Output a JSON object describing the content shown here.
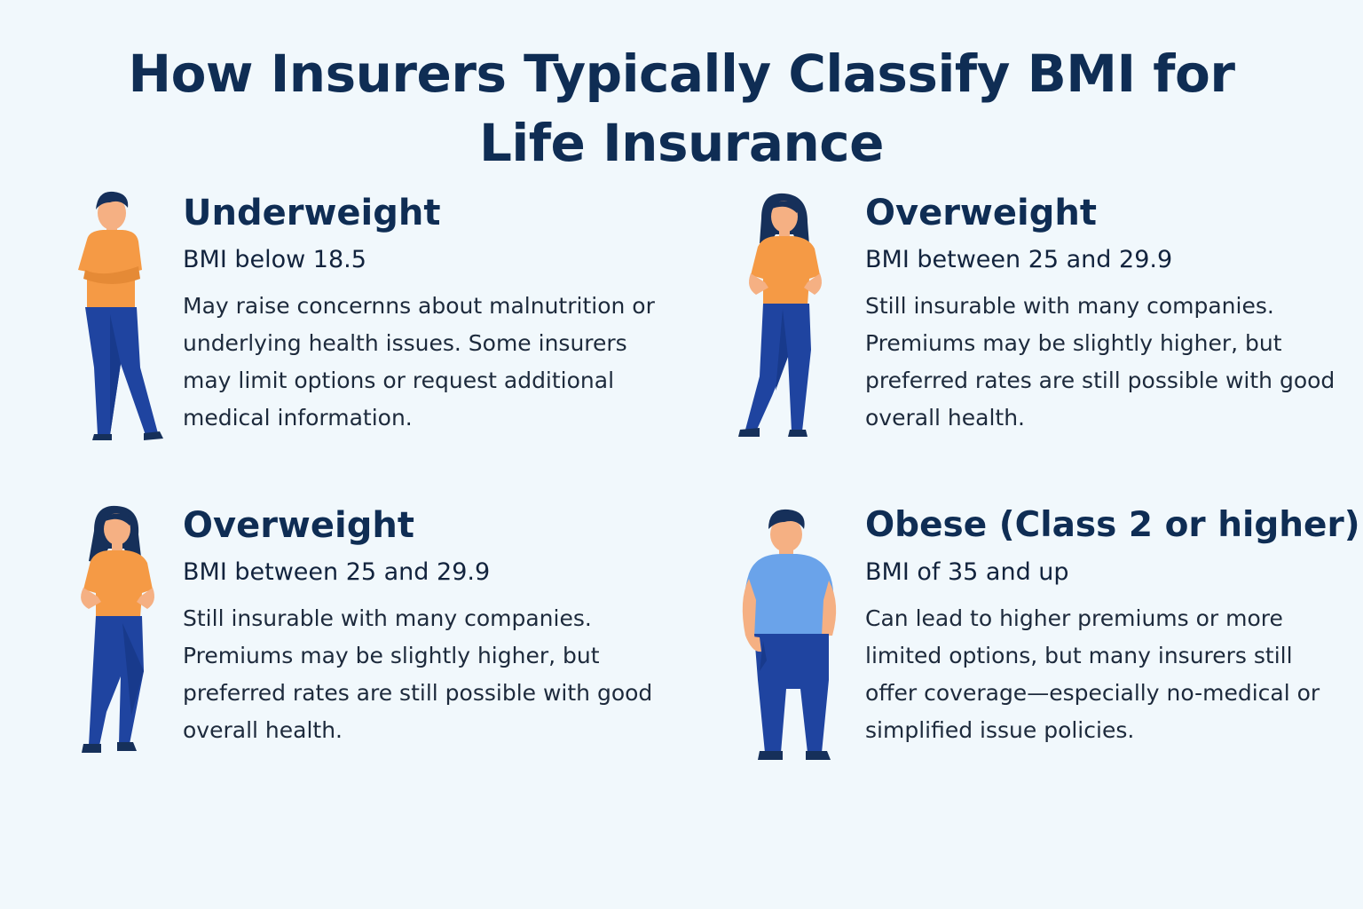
{
  "title": {
    "line1": "How Insurers Typically Classify BMI for",
    "line2": "Life Insurance"
  },
  "colors": {
    "background": "#f1f8fc",
    "heading": "#0f2d54",
    "shirt_orange": "#f59a45",
    "shirt_blue": "#6aa3ea",
    "pants_blue": "#1f44a0",
    "hair_navy": "#16305a",
    "skin": "#f5b083"
  },
  "categories": [
    {
      "name": "Underweight",
      "range": "BMI below 18.5",
      "description": "May raise concernns about malnutrition or underlying health issues. Some insurers may limit options or request additional medical information.",
      "icon": "thin-man-arms-crossed-icon"
    },
    {
      "name": "Overweight",
      "range": "BMI between 25 and 29.9",
      "description": "Still insurable with many companies. Premiums may be slightly higher, but preferred rates are still possible with good overall health.",
      "icon": "woman-hands-on-hips-icon"
    },
    {
      "name": "Overweight",
      "range": "BMI between 25 and 29.9",
      "description": "Still insurable with many companies. Premiums may be slightly higher, but preferred rates are still possible with good overall health.",
      "icon": "woman-hands-on-hips-icon"
    },
    {
      "name": "Obese (Class 2 or higher)",
      "range": "BMI of 35 and up",
      "description": "Can lead to higher premiums or more limited options, but many insurers still offer coverage—especially no-medical or simplified issue policies.",
      "icon": "heavy-man-hand-in-pocket-icon"
    }
  ]
}
